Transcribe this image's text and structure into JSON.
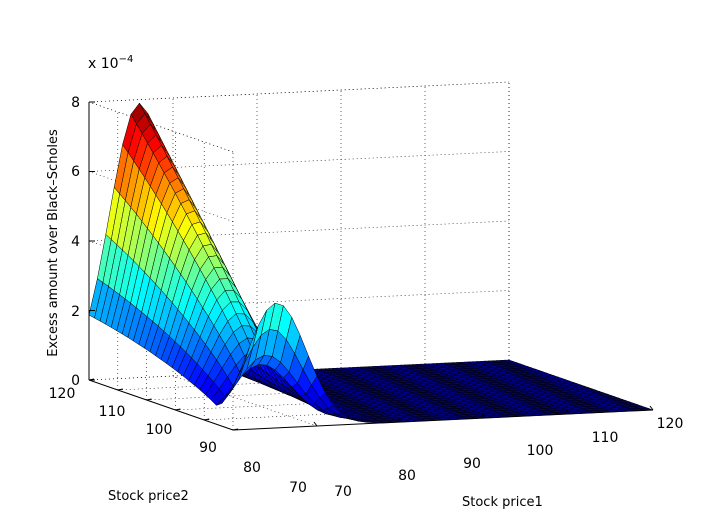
{
  "chart_data": {
    "type": "surface",
    "title": "",
    "exponent_label": "x 10",
    "exponent_power": "−4",
    "xlabel": "Stock price1",
    "ylabel": "Stock price2",
    "zlabel": "Excess amount over Black–Scholes",
    "x_ticks": [
      "80",
      "90",
      "100",
      "110",
      "120"
    ],
    "x_tick_values": [
      80,
      90,
      100,
      110,
      120
    ],
    "x_axis_extra_tick": "70",
    "y_ticks": [
      "70",
      "80",
      "90",
      "100",
      "110",
      "120"
    ],
    "y_tick_values": [
      70,
      80,
      90,
      100,
      110,
      120
    ],
    "z_ticks": [
      "0",
      "2",
      "4",
      "6",
      "8"
    ],
    "z_tick_values": [
      0,
      2,
      4,
      6,
      8
    ],
    "xlim": [
      70,
      120
    ],
    "ylim": [
      70,
      120
    ],
    "zlim": [
      0,
      8
    ],
    "z_scale": 0.0001,
    "grid": true,
    "colormap": "jet",
    "surface_shape": {
      "ridge_along": "Stock price2",
      "ridge_center_price1": 76,
      "ridge_width_price1": 5,
      "peak_value": 7.9,
      "peak_price2": 120,
      "value_at_price2_70": 3.6,
      "value_at_price2_75": 1.5
    }
  }
}
